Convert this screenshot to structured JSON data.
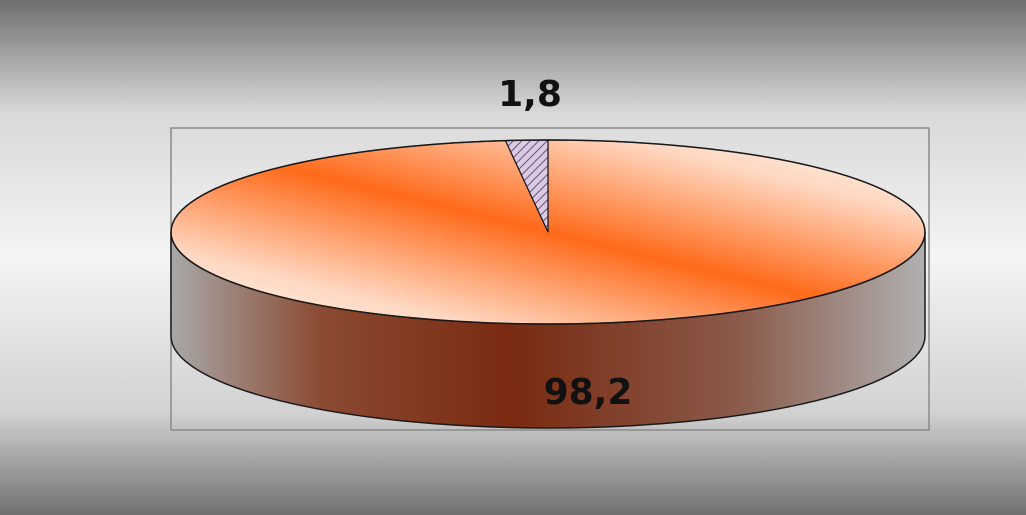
{
  "chart_data": {
    "type": "pie",
    "style": "3d",
    "slices": [
      {
        "value": 1.8,
        "label": "1,8",
        "fill": "hatched",
        "color": "#c9b9d6"
      },
      {
        "value": 98.2,
        "label": "98,2",
        "fill": "gradient",
        "color": "#ff6a1a"
      }
    ],
    "colors": {
      "top_highlight": "#fff3ec",
      "top_accent": "#ff6a1a",
      "side_dark": "#7a2a10",
      "side_light": "#a9a9a9",
      "hatch_stroke": "#6b4a7a",
      "outline": "#1a1a1a",
      "plot_border": "#8a8a8a",
      "background_dark": "#6f6f6f",
      "background_light": "#f2f2f2"
    }
  }
}
